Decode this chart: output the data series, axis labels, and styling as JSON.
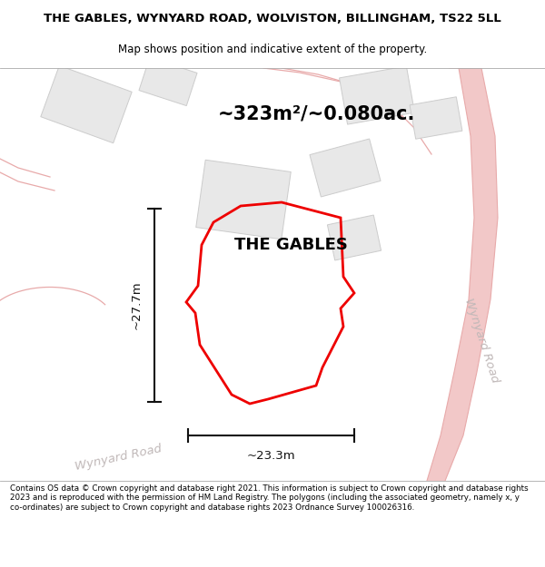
{
  "title_line1": "THE GABLES, WYNYARD ROAD, WOLVISTON, BILLINGHAM, TS22 5LL",
  "title_line2": "Map shows position and indicative extent of the property.",
  "area_text": "~323m²/~0.080ac.",
  "property_label": "THE GABLES",
  "dim_height": "~27.7m",
  "dim_width": "~23.3m",
  "road_label_bottom": "Wynyard Road",
  "road_label_right": "Wynyard Road",
  "footer_text": "Contains OS data © Crown copyright and database right 2021. This information is subject to Crown copyright and database rights 2023 and is reproduced with the permission of HM Land Registry. The polygons (including the associated geometry, namely x, y co-ordinates) are subject to Crown copyright and database rights 2023 Ordnance Survey 100026316.",
  "road_fill": "#f2c8c8",
  "road_line": "#e8aaaa",
  "building_fill": "#e8e8e8",
  "building_edge": "#cccccc",
  "property_edge": "#ee0000",
  "property_fill": "none",
  "dim_color": "#111111",
  "road_text_color": "#c0b8b8",
  "title_fontsize": 9.5,
  "subtitle_fontsize": 8.5,
  "area_fontsize": 15,
  "prop_label_fontsize": 13,
  "dim_fontsize": 9.5,
  "road_label_fontsize": 9.5,
  "footer_fontsize": 6.3
}
